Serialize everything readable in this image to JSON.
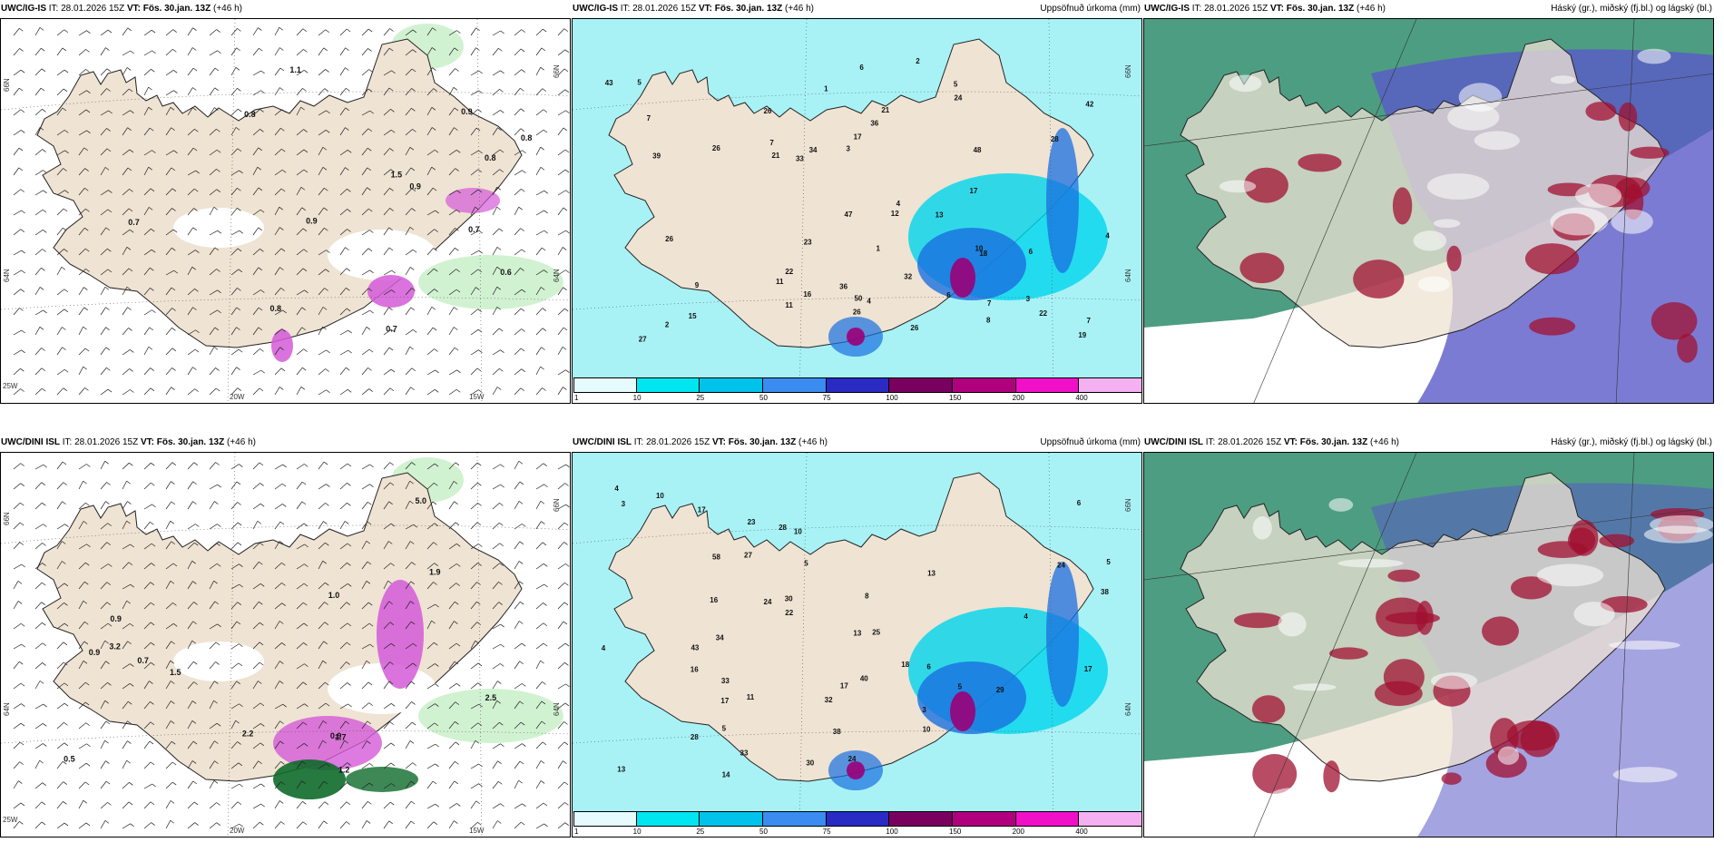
{
  "panels": [
    {
      "id": "ig-wind",
      "model": "UWC/IG-IS",
      "it_label": "IT: 28.01.2026 15Z",
      "vt_label": "VT: Fös. 30.jan. 13Z",
      "lead": "(+46 h)",
      "title_right": "",
      "ticks": {
        "lat_left_top": "66N",
        "lat_left_mid": "64N",
        "lat_right_top": "66N",
        "lat_right_mid": "64N",
        "lon_left": "25W",
        "lon_a": "20W",
        "lon_b": "15W"
      },
      "labels": [
        "0.6",
        "0.7",
        "0.9",
        "0.8",
        "0.8",
        "0.7",
        "0.8",
        "0.7",
        "0.9",
        "0.8",
        "1.1",
        "1.5",
        "0.9"
      ]
    },
    {
      "id": "ig-precip",
      "model": "UWC/IG-IS",
      "it_label": "IT: 28.01.2026 15Z",
      "vt_label": "VT: Fös. 30.jan. 13Z",
      "lead": "(+46 h)",
      "title_right": "Uppsöfnuð úrkoma (mm)",
      "ticks": {
        "lat_right_top": "66N",
        "lat_right_mid": "64N"
      },
      "labels": [
        "2",
        "6",
        "4",
        "1",
        "1",
        "2",
        "3",
        "5",
        "7",
        "11",
        "19",
        "21",
        "16",
        "6",
        "6",
        "7",
        "10",
        "26",
        "47",
        "42",
        "43",
        "15",
        "26",
        "13",
        "18",
        "24",
        "34",
        "36",
        "28",
        "32",
        "22",
        "23",
        "21",
        "27",
        "12",
        "26",
        "50",
        "48",
        "39",
        "36",
        "26",
        "22",
        "26",
        "11",
        "17",
        "33",
        "17",
        "4",
        "4",
        "7",
        "7",
        "3",
        "5",
        "8",
        "9"
      ]
    },
    {
      "id": "ig-clouds",
      "model": "UWC/IG-IS",
      "it_label": "IT: 28.01.2026 15Z",
      "vt_label": "VT: Fös. 30.jan. 13Z",
      "lead": "(+46 h)",
      "title_right": "Háský (gr.), miðský (fj.bl.) og lágský (bl.)"
    },
    {
      "id": "dini-wind",
      "model": "UWC/DINI ISL",
      "it_label": "IT: 28.01.2026 15Z",
      "vt_label": "VT: Fös. 30.jan. 13Z",
      "lead": "(+46 h)",
      "title_right": "",
      "ticks": {
        "lat_left_top": "66N",
        "lat_left_mid": "64N",
        "lat_right_top": "66N",
        "lat_right_mid": "64N",
        "lon_left": "25W",
        "lon_a": "20W",
        "lon_b": "15W"
      },
      "labels": [
        "1.7",
        "1.5",
        "0.9",
        "0.9",
        "0.9",
        "0.7",
        "0.5",
        "1.0",
        "3.2",
        "1.9",
        "2.5",
        "5.0",
        "1.2",
        "2.2"
      ]
    },
    {
      "id": "dini-precip",
      "model": "UWC/DINI ISL",
      "it_label": "IT: 28.01.2026 15Z",
      "vt_label": "VT: Fös. 30.jan. 13Z",
      "lead": "(+46 h)",
      "title_right": "Uppsöfnuð úrkoma (mm)",
      "ticks": {
        "lat_right_top": "66N",
        "lat_right_mid": "64N"
      },
      "labels": [
        "3",
        "4",
        "4",
        "6",
        "5",
        "3",
        "10",
        "11",
        "13",
        "5",
        "17",
        "25",
        "14",
        "16",
        "17",
        "24",
        "32",
        "28",
        "27",
        "30",
        "38",
        "38",
        "33",
        "34",
        "43",
        "40",
        "33",
        "29",
        "30",
        "28",
        "18",
        "23",
        "24",
        "17",
        "13",
        "16",
        "17",
        "22",
        "10",
        "13",
        "58",
        "24",
        "6",
        "5",
        "10",
        "8",
        "5",
        "4"
      ]
    },
    {
      "id": "dini-clouds",
      "model": "UWC/DINI ISL",
      "it_label": "IT: 28.01.2026 15Z",
      "vt_label": "VT: Fös. 30.jan. 13Z",
      "lead": "(+46 h)",
      "title_right": "Háský (gr.), miðský (fj.bl.) og lágský (bl.)"
    }
  ],
  "colorbar": {
    "labels": [
      "1",
      "10",
      "25",
      "50",
      "75",
      "100",
      "150",
      "200",
      "400"
    ],
    "colors": [
      "#e6fbfd",
      "#00e6f0",
      "#00c2ea",
      "#3a8cf0",
      "#2a2ac4",
      "#7a0060",
      "#b0007e",
      "#f010c8",
      "#f4b0f0"
    ]
  },
  "colors": {
    "land": "#efe3d3",
    "precip_cyan": "#a8f2f6",
    "precip_mid": "#00d4ec",
    "precip_high": "#1a6fe0",
    "precip_peak": "#9a0078",
    "wind_green": "#c6efc6",
    "wind_dark": "#0e6a2a",
    "wind_magenta": "#d45ad8",
    "cloud_green": "#2e8c6c",
    "cloud_blue": "#5a5ac8",
    "cloud_red": "#a01030"
  }
}
